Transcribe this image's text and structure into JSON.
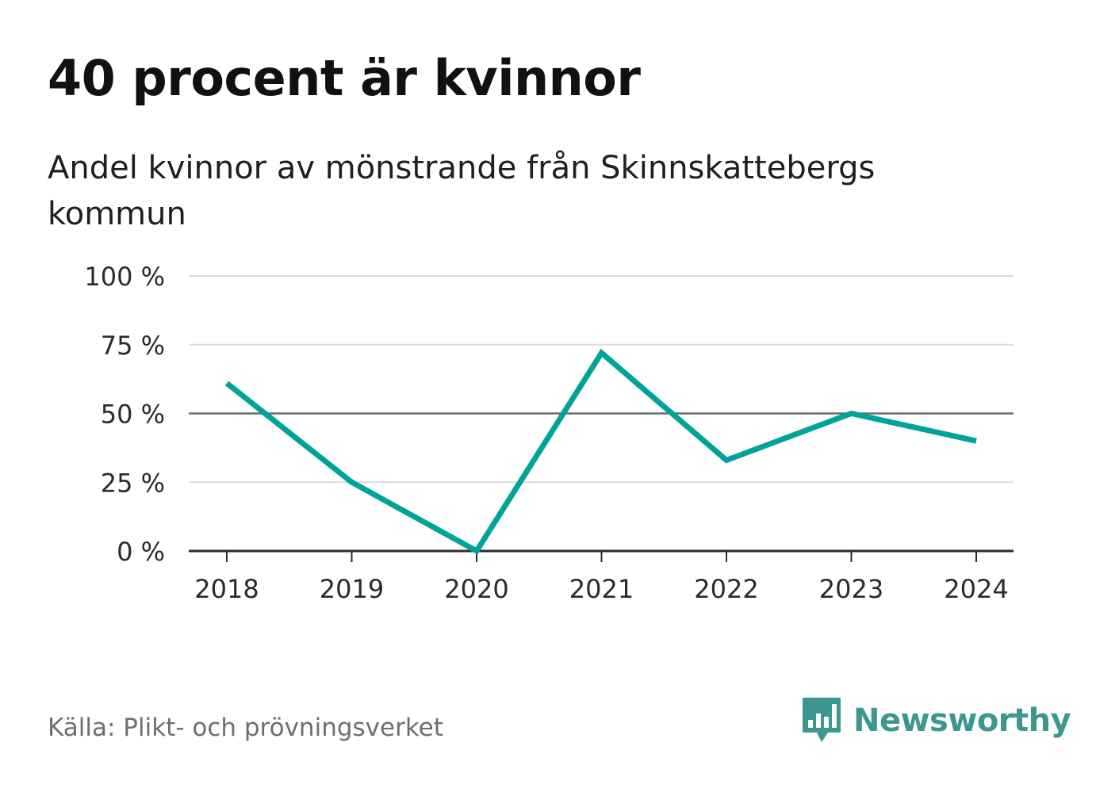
{
  "title": "40 procent är kvinnor",
  "subtitle": "Andel kvinnor av mönstrande från Skinnskattebergs kommun",
  "source": "Källa: Plikt- och prövningsverket",
  "brand": {
    "name": "Newsworthy",
    "icon": "newsworthy-logo-icon",
    "color": "#3d9690"
  },
  "chart_data": {
    "type": "line",
    "title": "40 procent är kvinnor",
    "subtitle": "Andel kvinnor av mönstrande från Skinnskattebergs kommun",
    "xlabel": "",
    "ylabel": "",
    "categories": [
      "2018",
      "2019",
      "2020",
      "2021",
      "2022",
      "2023",
      "2024"
    ],
    "series": [
      {
        "name": "Andel kvinnor",
        "values": [
          61,
          25,
          0,
          72,
          33,
          50,
          40
        ],
        "color": "#00a39a"
      }
    ],
    "ylim": [
      0,
      100
    ],
    "yticks": [
      {
        "value": 0,
        "label": "0 %"
      },
      {
        "value": 25,
        "label": "25 %"
      },
      {
        "value": 50,
        "label": "50 %"
      },
      {
        "value": 75,
        "label": "75 %"
      },
      {
        "value": 100,
        "label": "100 %"
      }
    ],
    "reference_line": 50,
    "grid": true,
    "legend": "none"
  }
}
